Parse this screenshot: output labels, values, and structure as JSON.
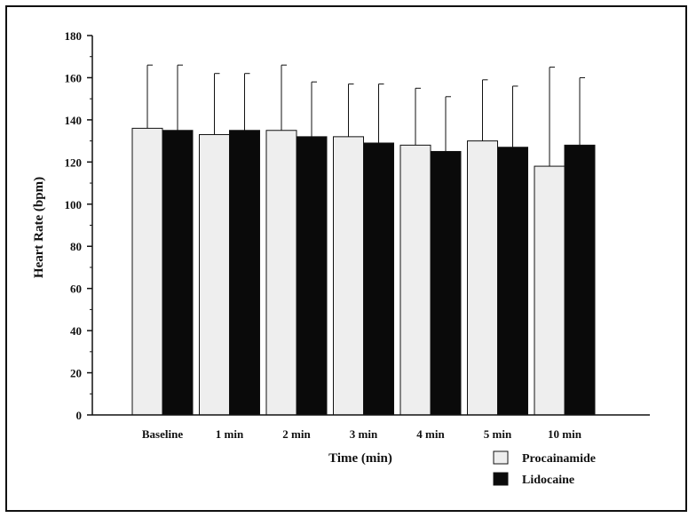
{
  "chart_data": {
    "type": "bar",
    "title": "",
    "ylabel": "Heart Rate (bpm)",
    "xlabel": "Time (min)",
    "ylim": [
      0,
      180
    ],
    "yticks": [
      0,
      20,
      40,
      60,
      80,
      100,
      120,
      140,
      160,
      180
    ],
    "grid": false,
    "legend_position": "bottom-right",
    "categories": [
      "Baseline",
      "1 min",
      "2 min",
      "3 min",
      "4 min",
      "5 min",
      "10 min"
    ],
    "series": [
      {
        "name": "Procainamide",
        "color": "#eeeeee",
        "values": [
          136,
          133,
          135,
          132,
          128,
          130,
          118
        ],
        "error_upper": [
          166,
          162,
          166,
          157,
          155,
          159,
          165
        ]
      },
      {
        "name": "Lidocaine",
        "color": "#0a0a0a",
        "values": [
          135,
          135,
          132,
          129,
          125,
          127,
          128
        ],
        "error_upper": [
          166,
          162,
          158,
          157,
          151,
          156,
          160
        ]
      }
    ]
  }
}
